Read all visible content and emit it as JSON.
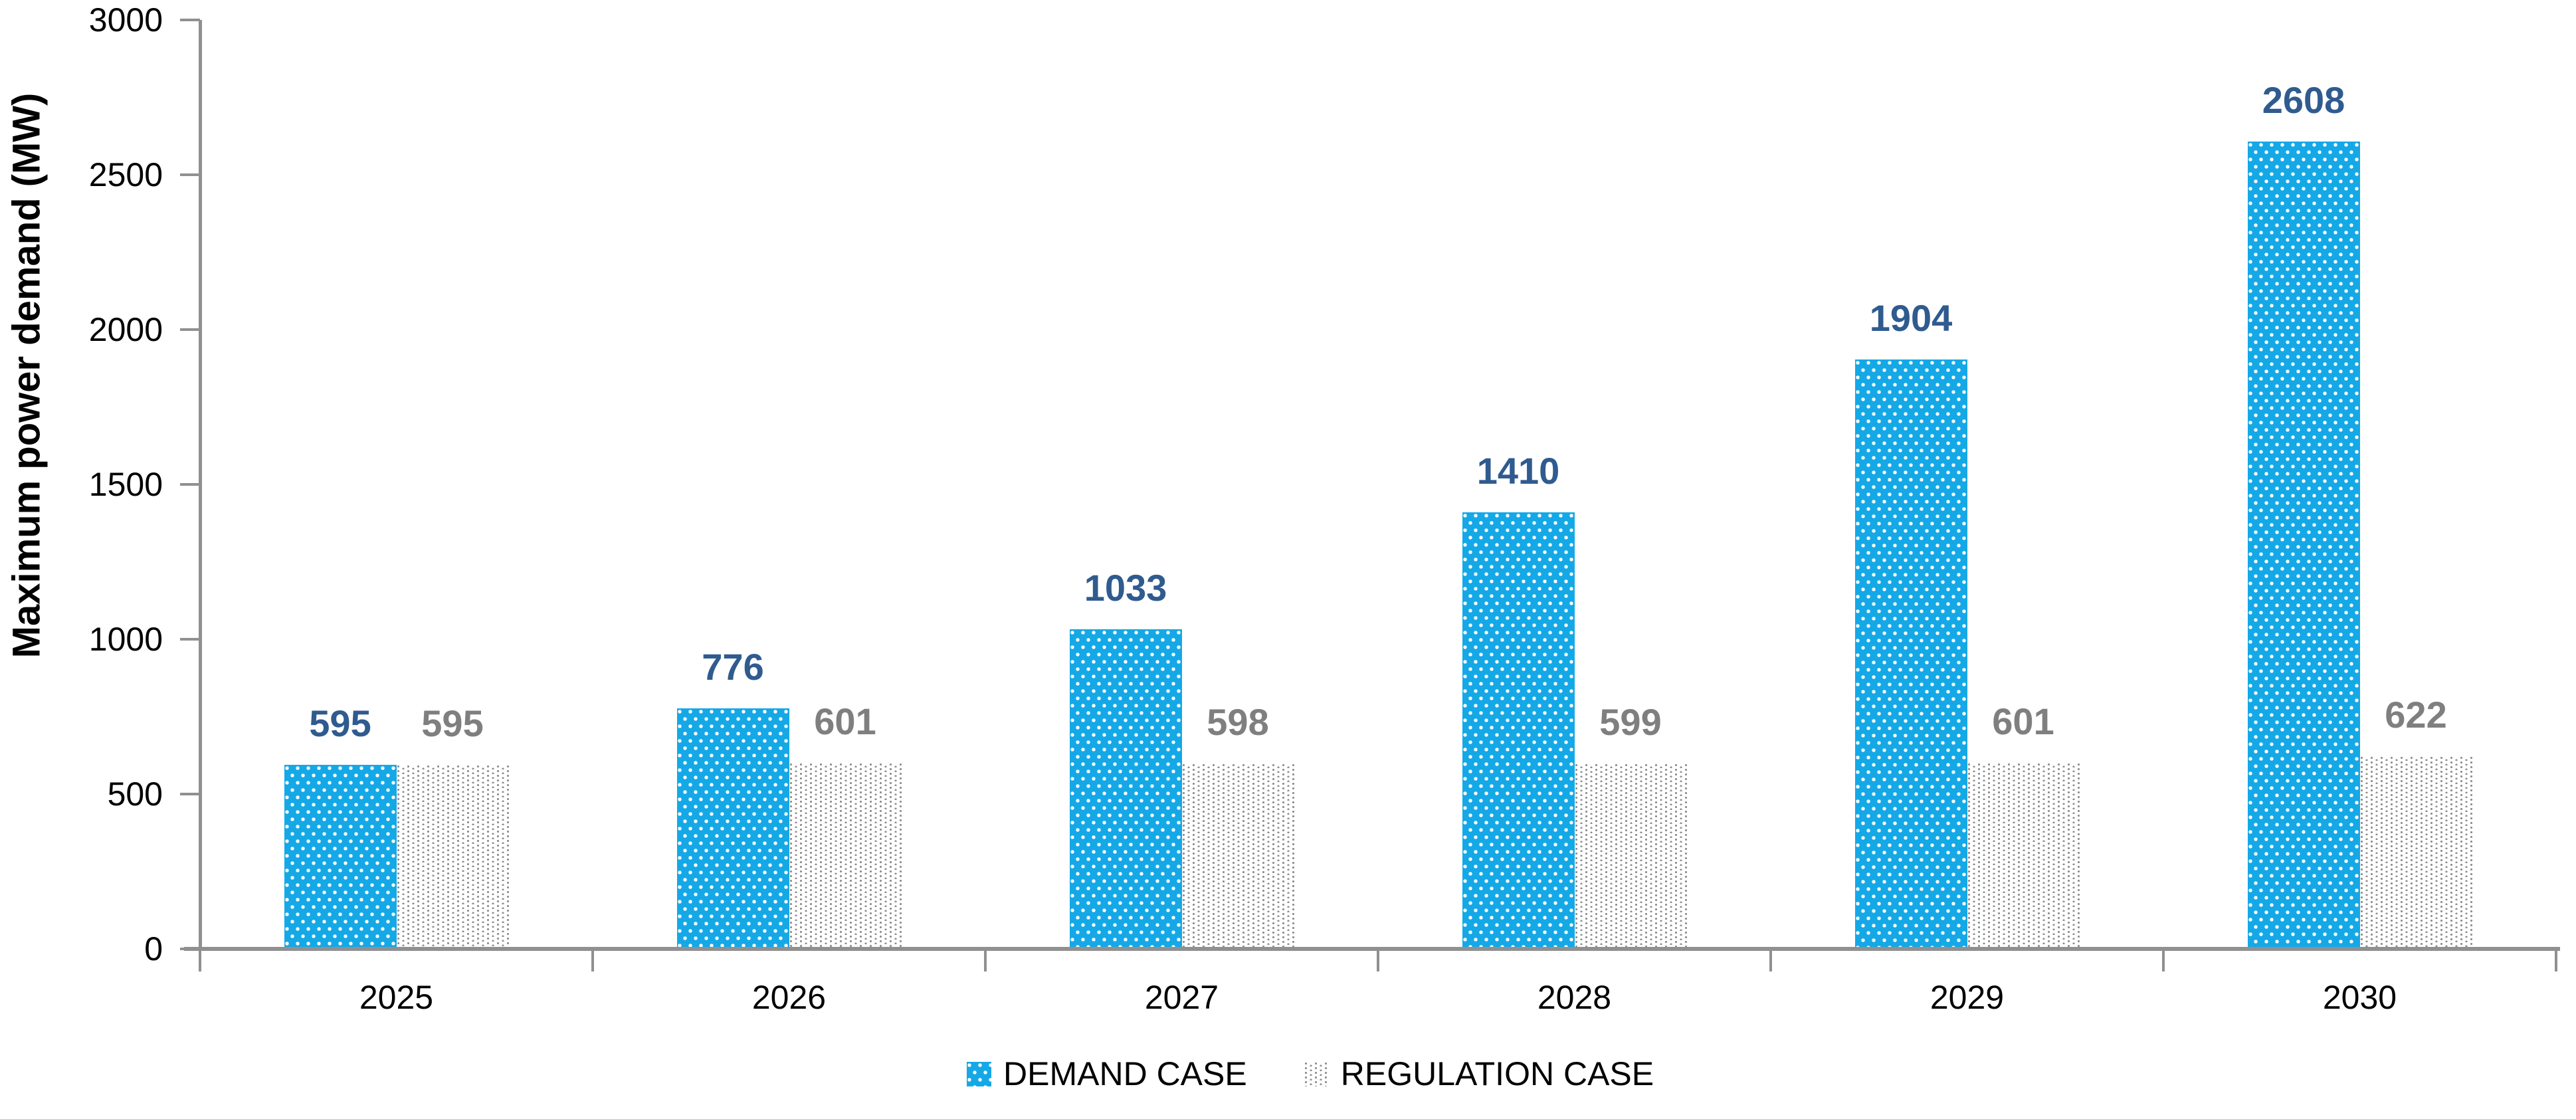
{
  "chart_data": {
    "type": "bar",
    "title": "",
    "xlabel": "",
    "ylabel": "Maximum power demand (MW)",
    "categories": [
      "2025",
      "2026",
      "2027",
      "2028",
      "2029",
      "2030"
    ],
    "series": [
      {
        "name": "DEMAND CASE",
        "values": [
          595,
          776,
          1033,
          1410,
          1904,
          2608
        ],
        "fill_color": "#15A8E7",
        "pattern": "white-dots",
        "label_color": "#2F5B8F"
      },
      {
        "name": "REGULATION CASE",
        "values": [
          595,
          601,
          598,
          599,
          601,
          622
        ],
        "fill_color": "#FFFFFF",
        "pattern": "gray-dots",
        "dot_color": "#8E8E8E",
        "label_color": "#7F7F7F"
      }
    ],
    "ylim": [
      0,
      3000
    ],
    "yticks": [
      0,
      500,
      1000,
      1500,
      2000,
      2500,
      3000
    ],
    "grid": false,
    "legend_position": "bottom",
    "axis_color": "#909090",
    "data_labels_shown": true
  }
}
